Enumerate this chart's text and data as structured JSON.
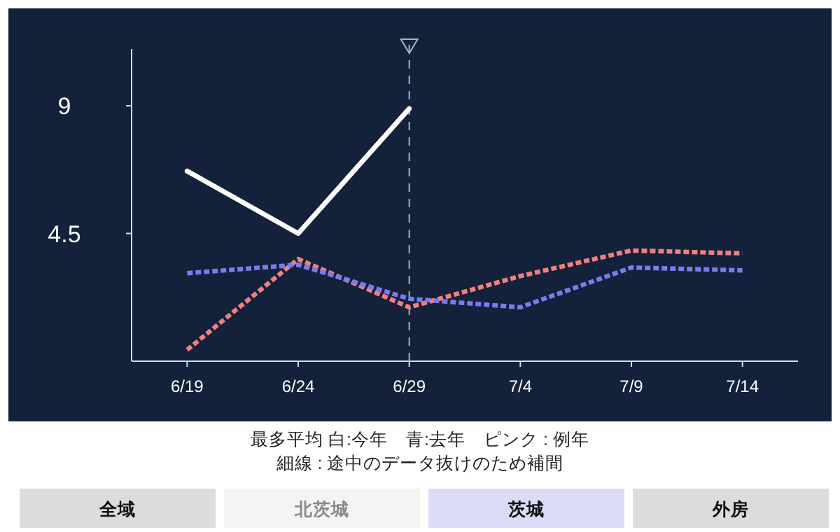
{
  "chart_data": {
    "type": "line",
    "categories": [
      "6/19",
      "6/24",
      "6/29",
      "7/4",
      "7/9",
      "7/14"
    ],
    "series": [
      {
        "color": "#ffffff",
        "line_style": "solid",
        "values": [
          6.7,
          4.5,
          8.9,
          null,
          null,
          null
        ]
      },
      {
        "color": "#7b7bf0",
        "line_style": "dotted",
        "values": [
          3.1,
          3.4,
          2.2,
          1.9,
          3.3,
          3.2
        ]
      },
      {
        "color": "#f08080",
        "line_style": "dotted",
        "values": [
          0.4,
          3.6,
          1.9,
          3.0,
          3.9,
          3.8
        ]
      }
    ],
    "ylim": [
      0,
      11
    ],
    "yticks": [
      9,
      4.5
    ],
    "grid": false,
    "ref_lines": [
      {
        "axis": "x",
        "value": "6/29",
        "color": "#aab4c0",
        "line_style": "dashed"
      }
    ],
    "annotations": [
      "最多平均 白:今年　青:去年　ピンク : 例年",
      "細線 : 途中のデータ抜けのため補間",
      "全域",
      "北茨城",
      "茨城",
      "外房"
    ]
  }
}
